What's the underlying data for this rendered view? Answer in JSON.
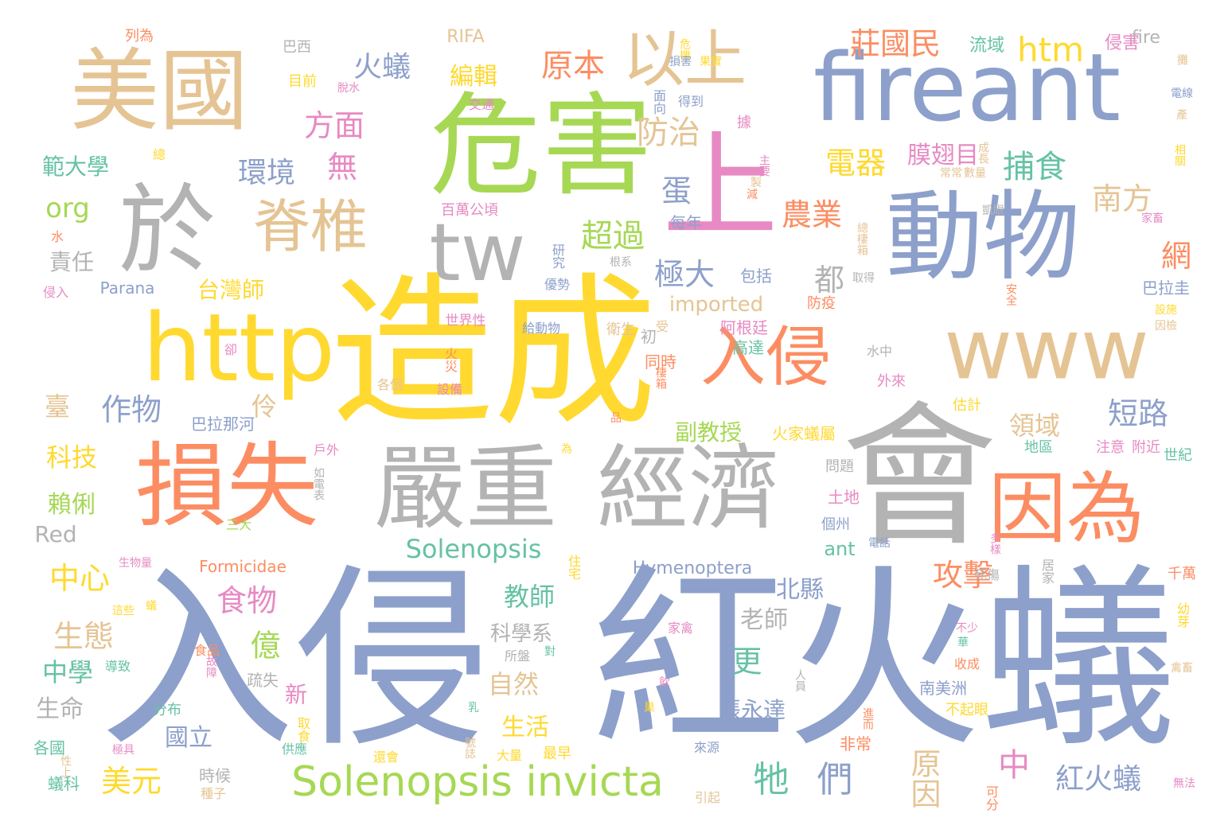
{
  "palette": {
    "blue": "#8da0cb",
    "green": "#a6d854",
    "yellow": "#ffd92f",
    "tan": "#e5c494",
    "gray": "#b3b3b3",
    "orange": "#fc8d62",
    "pink": "#e78ac3",
    "teal": "#66c2a5"
  },
  "words": [
    {
      "text": "入侵",
      "color": "blue"
    },
    {
      "text": "紅火蟻",
      "color": "blue"
    },
    {
      "text": "造成",
      "color": "yellow"
    },
    {
      "text": "會",
      "color": "gray"
    },
    {
      "text": "危害",
      "color": "green"
    },
    {
      "text": "美國",
      "color": "tan"
    },
    {
      "text": "fireant",
      "color": "blue"
    },
    {
      "text": "動物",
      "color": "blue"
    },
    {
      "text": "於",
      "color": "gray"
    },
    {
      "text": "損失",
      "color": "orange"
    },
    {
      "text": "嚴重",
      "color": "gray"
    },
    {
      "text": "經濟",
      "color": "gray"
    },
    {
      "text": "因為",
      "color": "orange"
    },
    {
      "text": "http",
      "color": "yellow"
    },
    {
      "text": "www",
      "color": "tan"
    },
    {
      "text": "tw",
      "color": "gray"
    },
    {
      "text": "上",
      "color": "pink"
    },
    {
      "text": "入侵",
      "color": "orange"
    },
    {
      "text": "以上",
      "color": "tan"
    },
    {
      "text": "脊椎",
      "color": "tan"
    },
    {
      "text": "Solenopsis invicta",
      "color": "green"
    },
    {
      "text": "莊國民",
      "color": "orange"
    },
    {
      "text": "htm",
      "color": "yellow"
    },
    {
      "text": "火蟻",
      "color": "blue"
    },
    {
      "text": "原本",
      "color": "orange"
    },
    {
      "text": "編輯",
      "color": "yellow"
    },
    {
      "text": "方面",
      "color": "pink"
    },
    {
      "text": "防治",
      "color": "tan"
    },
    {
      "text": "環境",
      "color": "blue"
    },
    {
      "text": "無",
      "color": "pink"
    },
    {
      "text": "電器",
      "color": "yellow"
    },
    {
      "text": "膜翅目",
      "color": "pink"
    },
    {
      "text": "捕食",
      "color": "teal"
    },
    {
      "text": "南方",
      "color": "tan"
    },
    {
      "text": "蛋",
      "color": "blue"
    },
    {
      "text": "農業",
      "color": "orange"
    },
    {
      "text": "超過",
      "color": "green"
    },
    {
      "text": "網",
      "color": "orange"
    },
    {
      "text": "極大",
      "color": "blue"
    },
    {
      "text": "都",
      "color": "gray"
    },
    {
      "text": "org",
      "color": "green"
    },
    {
      "text": "範大學",
      "color": "teal"
    },
    {
      "text": "責任",
      "color": "gray"
    },
    {
      "text": "台灣師",
      "color": "yellow"
    },
    {
      "text": "作物",
      "color": "blue"
    },
    {
      "text": "臺",
      "color": "tan"
    },
    {
      "text": "伶",
      "color": "tan"
    },
    {
      "text": "imported",
      "color": "tan"
    },
    {
      "text": "短路",
      "color": "blue"
    },
    {
      "text": "領域",
      "color": "tan"
    },
    {
      "text": "科技",
      "color": "yellow"
    },
    {
      "text": "賴俐",
      "color": "green"
    },
    {
      "text": "Red",
      "color": "gray"
    },
    {
      "text": "中心",
      "color": "yellow"
    },
    {
      "text": "生態",
      "color": "tan"
    },
    {
      "text": "食物",
      "color": "pink"
    },
    {
      "text": "攻擊",
      "color": "orange"
    },
    {
      "text": "北縣",
      "color": "blue"
    },
    {
      "text": "教師",
      "color": "teal"
    },
    {
      "text": "億",
      "color": "green"
    },
    {
      "text": "更",
      "color": "teal"
    },
    {
      "text": "老師",
      "color": "gray"
    },
    {
      "text": "Solenopsis",
      "color": "teal"
    },
    {
      "text": "中學",
      "color": "teal"
    },
    {
      "text": "科學系",
      "color": "gray"
    },
    {
      "text": "自然",
      "color": "tan"
    },
    {
      "text": "生命",
      "color": "gray"
    },
    {
      "text": "新",
      "color": "pink"
    },
    {
      "text": "張永達",
      "color": "blue"
    },
    {
      "text": "國立",
      "color": "blue"
    },
    {
      "text": "生活",
      "color": "yellow"
    },
    {
      "text": "美元",
      "color": "yellow"
    },
    {
      "text": "牠",
      "color": "teal"
    },
    {
      "text": "們",
      "color": "blue"
    },
    {
      "text": "原因",
      "color": "tan"
    },
    {
      "text": "中",
      "color": "pink"
    },
    {
      "text": "紅火蟻",
      "color": "blue"
    },
    {
      "text": "副教授",
      "color": "green"
    },
    {
      "text": "Hymenoptera",
      "color": "blue"
    },
    {
      "text": "Formicidae",
      "color": "orange"
    },
    {
      "text": "Parana",
      "color": "blue"
    },
    {
      "text": "RIFA",
      "color": "tan"
    },
    {
      "text": "fire",
      "color": "gray"
    },
    {
      "text": "ant",
      "color": "teal"
    },
    {
      "text": "流域",
      "color": "teal"
    },
    {
      "text": "侵害",
      "color": "pink"
    },
    {
      "text": "巴拉圭",
      "color": "blue"
    },
    {
      "text": "阿根廷",
      "color": "pink"
    },
    {
      "text": "高達",
      "color": "teal"
    },
    {
      "text": "包括",
      "color": "blue"
    },
    {
      "text": "每年",
      "color": "blue"
    },
    {
      "text": "衛生",
      "color": "tan"
    },
    {
      "text": "巴拉那河",
      "color": "blue"
    },
    {
      "text": "火家蟻屬",
      "color": "yellow"
    },
    {
      "text": "世界性",
      "color": "pink"
    },
    {
      "text": "百萬公頃",
      "color": "pink"
    },
    {
      "text": "列為",
      "color": "orange"
    },
    {
      "text": "巴西",
      "color": "gray"
    },
    {
      "text": "目前",
      "color": "yellow"
    },
    {
      "text": "面向",
      "color": "blue"
    },
    {
      "text": "得到",
      "color": "blue"
    },
    {
      "text": "交通",
      "color": "pink"
    },
    {
      "text": "危機",
      "color": "yellow"
    },
    {
      "text": "損害",
      "color": "blue"
    },
    {
      "text": "果實",
      "color": "yellow"
    },
    {
      "text": "同時",
      "color": "orange"
    },
    {
      "text": "外來",
      "color": "pink"
    },
    {
      "text": "防疫",
      "color": "orange"
    },
    {
      "text": "估計",
      "color": "yellow"
    },
    {
      "text": "注意",
      "color": "pink"
    },
    {
      "text": "附近",
      "color": "pink"
    },
    {
      "text": "地區",
      "color": "teal"
    },
    {
      "text": "世紀",
      "color": "teal"
    },
    {
      "text": "土地",
      "color": "pink"
    },
    {
      "text": "問題",
      "color": "gray"
    },
    {
      "text": "個州",
      "color": "blue"
    },
    {
      "text": "南美洲",
      "color": "blue"
    },
    {
      "text": "不起眼",
      "color": "yellow"
    },
    {
      "text": "非常",
      "color": "orange"
    },
    {
      "text": "千萬",
      "color": "orange"
    },
    {
      "text": "幼芽",
      "color": "yellow"
    },
    {
      "text": "時候",
      "color": "gray"
    },
    {
      "text": "種子",
      "color": "tan"
    },
    {
      "text": "可分",
      "color": "orange"
    },
    {
      "text": "無法",
      "color": "pink"
    },
    {
      "text": "引起",
      "color": "tan"
    },
    {
      "text": "蟻科",
      "color": "teal"
    },
    {
      "text": "各國",
      "color": "teal"
    },
    {
      "text": "分布",
      "color": "teal"
    },
    {
      "text": "取食",
      "color": "yellow"
    },
    {
      "text": "供應",
      "color": "teal"
    },
    {
      "text": "大量",
      "color": "yellow"
    },
    {
      "text": "最早",
      "color": "yellow"
    },
    {
      "text": "來源",
      "color": "blue"
    },
    {
      "text": "設備",
      "color": "pink"
    },
    {
      "text": "火災",
      "color": "orange"
    },
    {
      "text": "各個",
      "color": "tan"
    },
    {
      "text": "給動物",
      "color": "blue"
    },
    {
      "text": "居家",
      "color": "gray"
    },
    {
      "text": "死傷",
      "color": "gray"
    },
    {
      "text": "收成",
      "color": "orange"
    },
    {
      "text": "人員",
      "color": "gray"
    },
    {
      "text": "疏失",
      "color": "gray"
    },
    {
      "text": "電話",
      "color": "blue"
    },
    {
      "text": "多樣",
      "color": "pink"
    },
    {
      "text": "三大",
      "color": "green"
    },
    {
      "text": "生物量",
      "color": "pink"
    },
    {
      "text": "住宅",
      "color": "yellow"
    },
    {
      "text": "家禽",
      "color": "pink"
    },
    {
      "text": "食品",
      "color": "orange"
    },
    {
      "text": "故障",
      "color": "pink"
    },
    {
      "text": "導致",
      "color": "teal"
    },
    {
      "text": "所盤",
      "color": "gray"
    },
    {
      "text": "如電表",
      "color": "gray"
    },
    {
      "text": "戶外",
      "color": "pink"
    },
    {
      "text": "極具",
      "color": "pink"
    },
    {
      "text": "號誌",
      "color": "tan"
    },
    {
      "text": "侵入",
      "color": "pink"
    },
    {
      "text": "優勢",
      "color": "blue"
    },
    {
      "text": "研究",
      "color": "blue"
    },
    {
      "text": "脫水",
      "color": "pink"
    },
    {
      "text": "總",
      "color": "yellow"
    },
    {
      "text": "水",
      "color": "orange"
    },
    {
      "text": "卻",
      "color": "pink"
    },
    {
      "text": "還會",
      "color": "yellow"
    },
    {
      "text": "性上",
      "color": "tan"
    },
    {
      "text": "蟻",
      "color": "yellow"
    },
    {
      "text": "初",
      "color": "gray"
    },
    {
      "text": "受",
      "color": "tan"
    },
    {
      "text": "水中",
      "color": "gray"
    },
    {
      "text": "據",
      "color": "pink"
    },
    {
      "text": "主要",
      "color": "pink"
    },
    {
      "text": "製",
      "color": "tan"
    },
    {
      "text": "減",
      "color": "orange"
    },
    {
      "text": "成長",
      "color": "tan"
    },
    {
      "text": "常常",
      "color": "tan"
    },
    {
      "text": "數量",
      "color": "tan"
    },
    {
      "text": "相關",
      "color": "yellow"
    },
    {
      "text": "家畜",
      "color": "pink"
    },
    {
      "text": "凱眼",
      "color": "gray"
    },
    {
      "text": "總棲箱",
      "color": "tan"
    },
    {
      "text": "根系",
      "color": "gray"
    },
    {
      "text": "取得",
      "color": "gray"
    },
    {
      "text": "安全",
      "color": "orange"
    },
    {
      "text": "設施",
      "color": "yellow"
    },
    {
      "text": "因檢",
      "color": "tan"
    },
    {
      "text": "攤",
      "color": "tan"
    },
    {
      "text": "電線",
      "color": "blue"
    },
    {
      "text": "產",
      "color": "tan"
    },
    {
      "text": "棲箱",
      "color": "orange"
    },
    {
      "text": "這些",
      "color": "yellow"
    },
    {
      "text": "為",
      "color": "yellow"
    },
    {
      "text": "對",
      "color": "teal"
    },
    {
      "text": "飲",
      "color": "pink"
    },
    {
      "text": "乳",
      "color": "teal"
    },
    {
      "text": "巢",
      "color": "yellow"
    },
    {
      "text": "華",
      "color": "teal"
    },
    {
      "text": "不少",
      "color": "pink"
    },
    {
      "text": "進而",
      "color": "orange"
    },
    {
      "text": "禽畜",
      "color": "tan"
    },
    {
      "text": "品",
      "color": "orange"
    }
  ]
}
